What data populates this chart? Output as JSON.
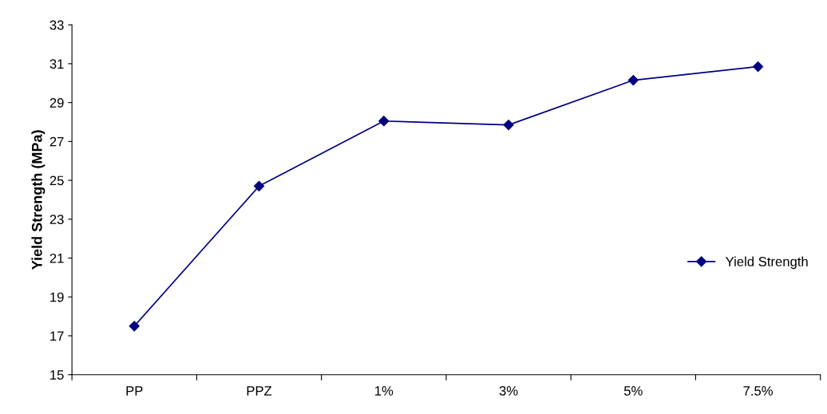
{
  "chart_data": {
    "type": "line",
    "ylabel": "Yield Strength (MPa)",
    "categories": [
      "PP",
      "PPZ",
      "1%",
      "3%",
      "5%",
      "7.5%"
    ],
    "series": [
      {
        "name": "Yield Strength",
        "color": "#000080",
        "values": [
          17.5,
          24.7,
          28.05,
          27.85,
          30.15,
          30.85
        ]
      }
    ],
    "ylim": [
      15,
      33
    ],
    "yticks": [
      15,
      17,
      19,
      21,
      23,
      25,
      27,
      29,
      31,
      33
    ],
    "marker": "diamond",
    "legend": "right",
    "grid": false
  }
}
